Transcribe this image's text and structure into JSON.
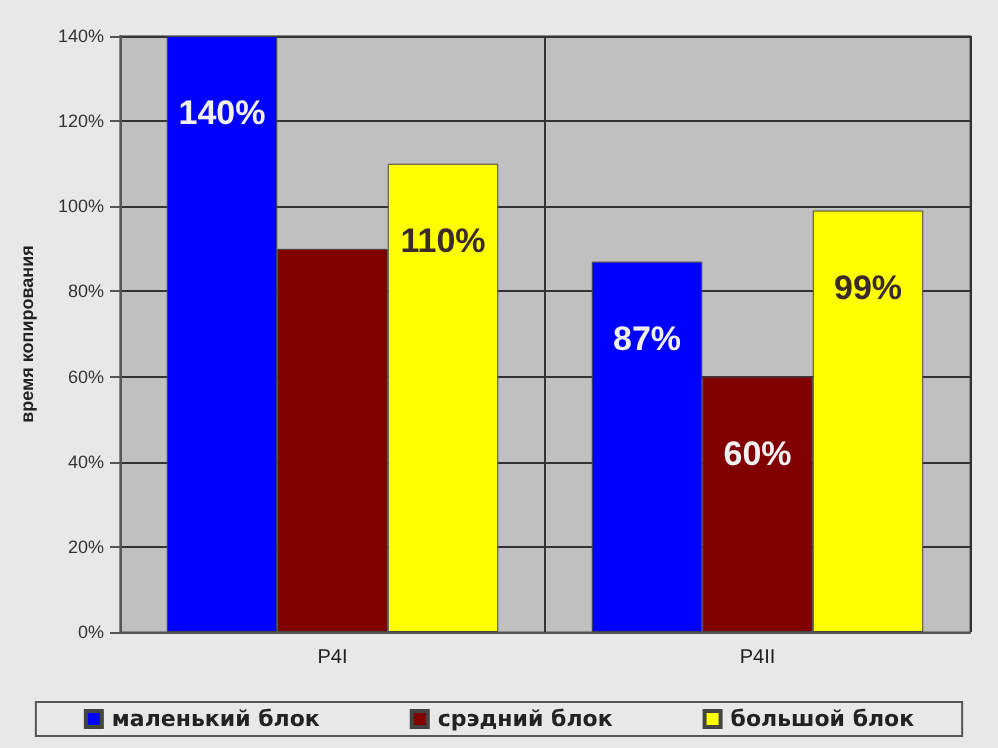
{
  "chart_data": {
    "type": "bar",
    "ylabel": "время копирования",
    "categories": [
      "P4I",
      "P4II"
    ],
    "series": [
      {
        "name": "маленький блок",
        "color": "#0000ff",
        "values": [
          140,
          87
        ],
        "value_labels": [
          "140%",
          "87%"
        ]
      },
      {
        "name": "срэдний блок",
        "color": "#800000",
        "values": [
          90,
          60
        ],
        "value_labels": [
          null,
          "60%"
        ]
      },
      {
        "name": "большой блок",
        "color": "#ffff00",
        "values": [
          110,
          99
        ],
        "value_labels": [
          "110%",
          "99%"
        ]
      }
    ],
    "ylim": [
      0,
      140
    ],
    "yticks": [
      {
        "value": 0,
        "label": "0%"
      },
      {
        "value": 20,
        "label": "20%"
      },
      {
        "value": 40,
        "label": "40%"
      },
      {
        "value": 60,
        "label": "60%"
      },
      {
        "value": 80,
        "label": "80%"
      },
      {
        "value": 100,
        "label": "100%"
      },
      {
        "value": 120,
        "label": "120%"
      },
      {
        "value": 140,
        "label": "140%"
      }
    ],
    "grid": true,
    "legend": "bottom"
  }
}
